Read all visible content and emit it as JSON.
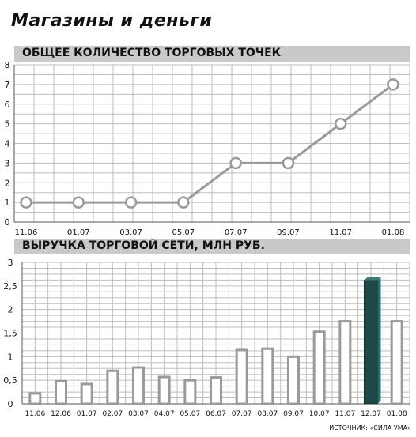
{
  "title": "Магазины и деньги",
  "source": "ИСТОЧНИК: «СИЛА УМА»",
  "chart_data": [
    {
      "type": "line",
      "title": "ОБЩЕЕ КОЛИЧЕСТВО ТОРГОВЫХ ТОЧЕК",
      "categories": [
        "11.06",
        "01.07",
        "03.07",
        "05.07",
        "07.07",
        "09.07",
        "11.07",
        "01.08"
      ],
      "values": [
        1,
        1,
        1,
        1,
        3,
        3,
        5,
        7
      ],
      "ylim": [
        0,
        8
      ],
      "yticks": [
        "0",
        "1",
        "2",
        "3",
        "4",
        "5",
        "6",
        "7",
        "8"
      ],
      "grid": true
    },
    {
      "type": "bar",
      "title": "ВЫРУЧКА ТОРГОВОЙ СЕТИ, МЛН РУБ.",
      "categories": [
        "11.06",
        "12.06",
        "01.07",
        "02.07",
        "03.07",
        "04.07",
        "05.07",
        "06.07",
        "07.07",
        "08.07",
        "09.07",
        "10.07",
        "11.07",
        "12.07",
        "01.08"
      ],
      "values": [
        0.22,
        0.48,
        0.42,
        0.7,
        0.77,
        0.57,
        0.5,
        0.56,
        1.14,
        1.17,
        1.0,
        1.53,
        1.75,
        2.62,
        1.75
      ],
      "highlight_index": 13,
      "ylim": [
        0,
        3
      ],
      "yticks": [
        "0",
        "0,5",
        "1",
        "1,5",
        "2",
        "2,5",
        "3"
      ],
      "grid": true
    }
  ],
  "colors": {
    "line": "#9a9a9a",
    "grid": "#bdbdbd",
    "bar_outline": "#9a9a9a",
    "highlight_bar": "#1d4a46",
    "band": "#c9c9c9"
  }
}
